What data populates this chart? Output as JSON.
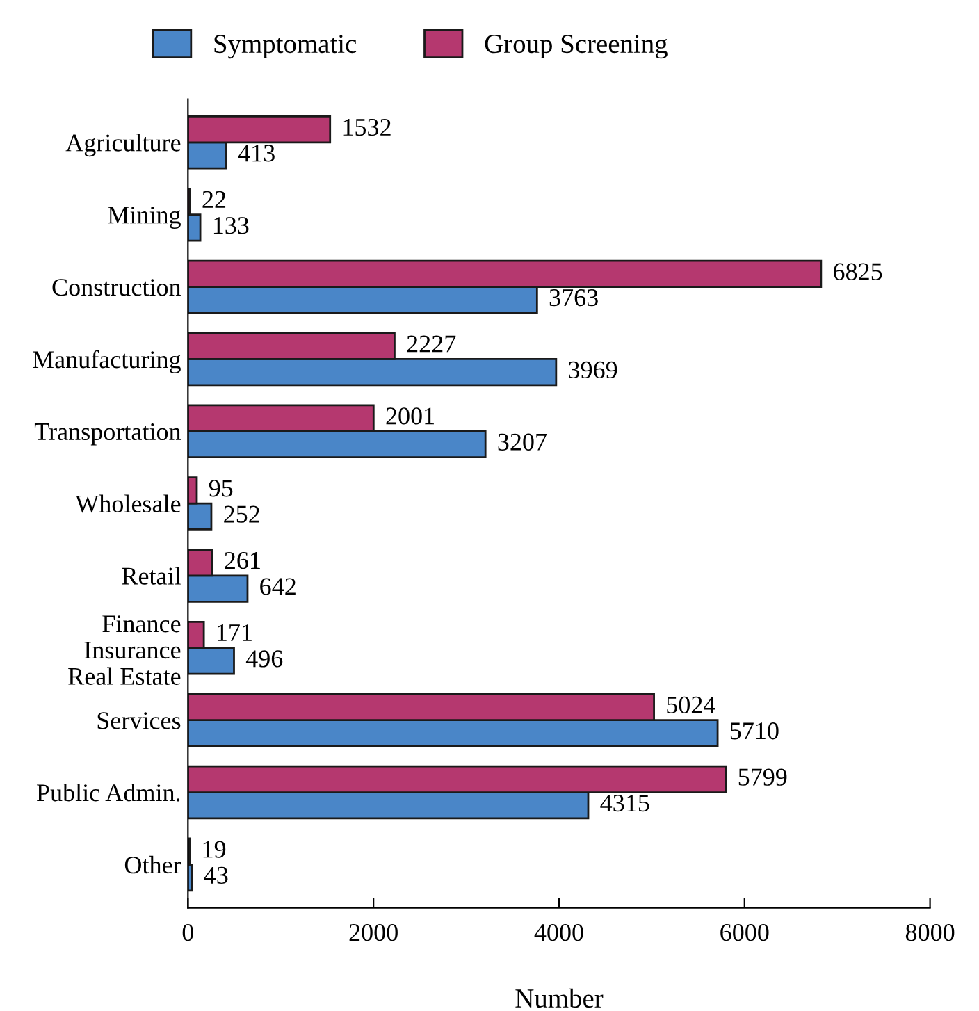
{
  "chart_data": {
    "type": "bar",
    "orientation": "horizontal",
    "xlabel": "Number",
    "categories": [
      "Agriculture",
      "Mining",
      "Construction",
      "Manufacturing",
      "Transportation",
      "Wholesale",
      "Retail",
      "Finance\nInsurance\nReal Estate",
      "Services",
      "Public Admin.",
      "Other"
    ],
    "series": [
      {
        "name": "Symptomatic",
        "color": "#4a86c8",
        "values": [
          413,
          133,
          3763,
          3969,
          3207,
          252,
          642,
          496,
          5710,
          4315,
          43
        ]
      },
      {
        "name": "Group Screening",
        "color": "#b5386f",
        "values": [
          1532,
          22,
          6825,
          2227,
          2001,
          95,
          261,
          171,
          5024,
          5799,
          19
        ]
      }
    ],
    "xlim": [
      0,
      8000
    ],
    "xticks": [
      0,
      2000,
      4000,
      6000,
      8000
    ],
    "grid": false,
    "legend": "top",
    "data_labels": true
  }
}
